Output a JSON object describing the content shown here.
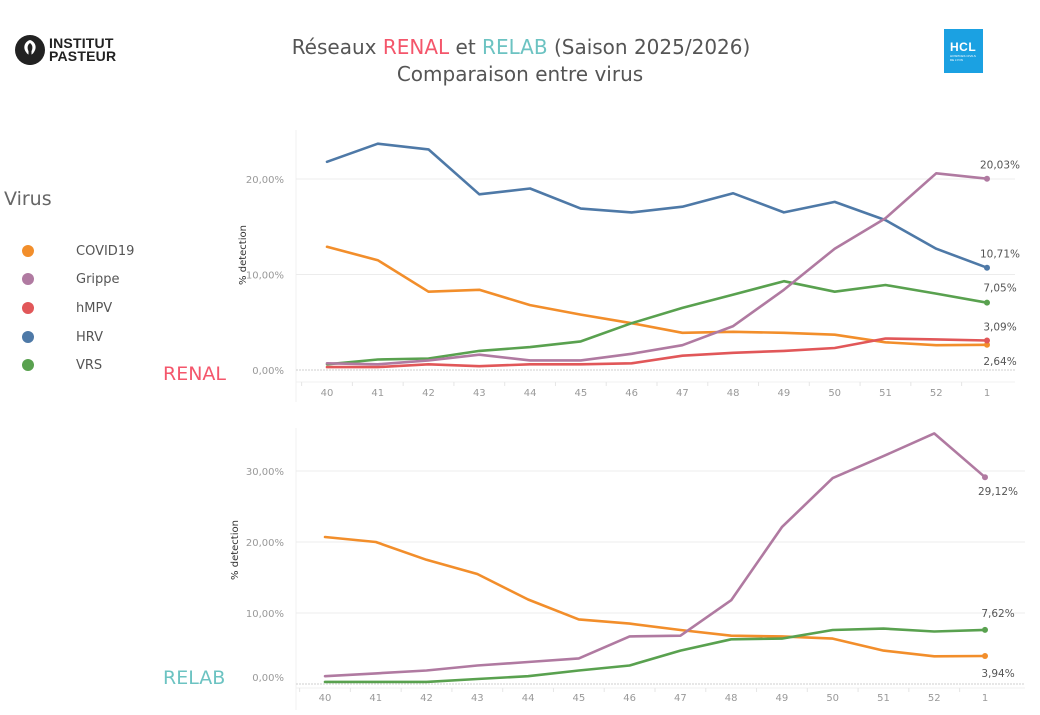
{
  "header": {
    "title_prefix": "Réseaux ",
    "title_renal": "RENAL",
    "title_mid": " et ",
    "title_relab": "RELAB",
    "title_suffix": " (Saison 2025/2026)",
    "subtitle": "Comparaison entre virus",
    "logo_left_line1": "INSTITUT",
    "logo_left_line2": "PASTEUR",
    "logo_right_main": "HCL",
    "logo_right_sub": "HOSPICES CIVILS DE LYON"
  },
  "colors": {
    "renal": "#f4566b",
    "relab": "#6cc3c2",
    "COVID19": "#f28e2b",
    "Grippe": "#b07aa1",
    "hMPV": "#e15759",
    "HRV": "#4e79a7",
    "VRS": "#59a14f",
    "hcl_blue": "#1ba1e2"
  },
  "legend": {
    "title": "Virus",
    "items": [
      {
        "label": "COVID19",
        "color": "#f28e2b"
      },
      {
        "label": "Grippe",
        "color": "#b07aa1"
      },
      {
        "label": "hMPV",
        "color": "#e15759"
      },
      {
        "label": "HRV",
        "color": "#4e79a7"
      },
      {
        "label": "VRS",
        "color": "#59a14f"
      }
    ]
  },
  "chart_data": [
    {
      "type": "line",
      "network": "RENAL",
      "title": "RENAL",
      "xlabel": "",
      "ylabel": "% detection",
      "categories": [
        "40",
        "41",
        "42",
        "43",
        "44",
        "45",
        "46",
        "47",
        "48",
        "49",
        "50",
        "51",
        "52",
        "1"
      ],
      "yticks": [
        "0,00%",
        "10,00%",
        "20,00%"
      ],
      "ytick_values": [
        0,
        10,
        20
      ],
      "ylim": [
        -1.5,
        25.5
      ],
      "grid": true,
      "series": [
        {
          "name": "HRV",
          "color": "#4e79a7",
          "values": [
            21.8,
            23.7,
            23.1,
            18.4,
            19.0,
            16.9,
            16.5,
            17.1,
            18.5,
            16.5,
            17.6,
            15.7,
            12.7,
            10.71
          ],
          "end_label": "10,71%"
        },
        {
          "name": "COVID19",
          "color": "#f28e2b",
          "values": [
            12.9,
            11.5,
            8.2,
            8.4,
            6.8,
            5.8,
            4.9,
            3.9,
            4.0,
            3.9,
            3.7,
            2.9,
            2.6,
            2.64
          ],
          "end_label": "2,64%"
        },
        {
          "name": "VRS",
          "color": "#59a14f",
          "values": [
            0.6,
            1.1,
            1.2,
            2.0,
            2.4,
            3.0,
            4.9,
            6.5,
            7.9,
            9.3,
            8.2,
            8.9,
            8.0,
            7.05
          ],
          "end_label": "7,05%"
        },
        {
          "name": "Grippe",
          "color": "#b07aa1",
          "values": [
            0.7,
            0.6,
            1.0,
            1.6,
            1.0,
            1.0,
            1.7,
            2.6,
            4.6,
            8.4,
            12.7,
            15.9,
            20.6,
            20.03
          ],
          "end_label": "20,03%"
        },
        {
          "name": "hMPV",
          "color": "#e15759",
          "values": [
            0.3,
            0.3,
            0.6,
            0.4,
            0.6,
            0.6,
            0.7,
            1.5,
            1.8,
            2.0,
            2.3,
            3.3,
            3.2,
            3.09
          ],
          "end_label": "3,09%"
        }
      ]
    },
    {
      "type": "line",
      "network": "RELAB",
      "title": "RELAB",
      "xlabel": "",
      "ylabel": "% detection",
      "categories": [
        "40",
        "41",
        "42",
        "43",
        "44",
        "45",
        "46",
        "47",
        "48",
        "49",
        "50",
        "51",
        "52",
        "1"
      ],
      "yticks": [
        "0,00%",
        "10,00%",
        "20,00%",
        "30,00%"
      ],
      "ytick_values": [
        0,
        10,
        20,
        30
      ],
      "ylim": [
        -0.5,
        36.5
      ],
      "grid": true,
      "series": [
        {
          "name": "COVID19",
          "color": "#f28e2b",
          "values": [
            20.7,
            20.0,
            17.5,
            15.5,
            11.9,
            9.1,
            8.5,
            7.6,
            6.8,
            6.7,
            6.4,
            4.7,
            3.9,
            3.94
          ],
          "end_label": "3,94%"
        },
        {
          "name": "Grippe",
          "color": "#b07aa1",
          "values": [
            1.1,
            1.5,
            1.9,
            2.6,
            3.1,
            3.6,
            6.7,
            6.8,
            11.8,
            22.1,
            29.0,
            32.1,
            35.3,
            29.12
          ],
          "end_label": "29,12%"
        },
        {
          "name": "VRS",
          "color": "#59a14f",
          "values": [
            0.3,
            0.3,
            0.3,
            0.7,
            1.1,
            1.9,
            2.6,
            4.7,
            6.3,
            6.4,
            7.6,
            7.8,
            7.4,
            7.62
          ],
          "end_label": "7,62%"
        }
      ]
    }
  ]
}
